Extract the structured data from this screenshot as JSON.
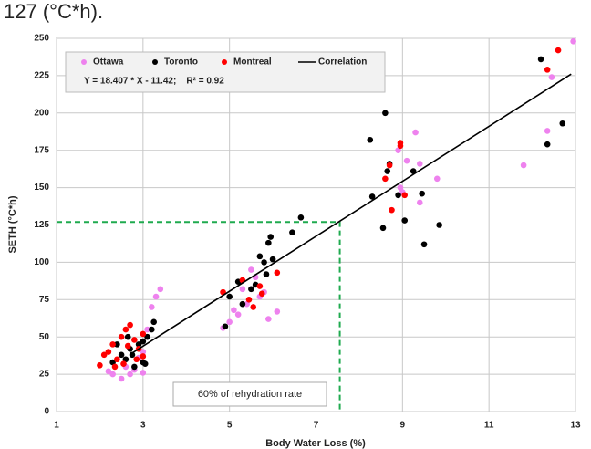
{
  "chart_data": {
    "type": "scatter",
    "text_above": "127 (°C*h).",
    "xlabel": "Body Water Loss (%)",
    "ylabel": "SETH (°C*h)",
    "xlim": [
      1,
      13
    ],
    "xticks": [
      1,
      3,
      5,
      7,
      9,
      11,
      13
    ],
    "ylim": [
      0,
      250
    ],
    "yticks": [
      0,
      25,
      50,
      75,
      100,
      125,
      150,
      175,
      200,
      225,
      250
    ],
    "grid": true,
    "series": [
      {
        "name": "Ottawa",
        "color": "#ee82ee",
        "x": [
          2.2,
          2.3,
          2.5,
          2.6,
          2.8,
          2.9,
          3.0,
          3.2,
          3.3,
          3.4,
          3.1,
          2.7,
          3.0,
          4.85,
          5.0,
          5.1,
          5.2,
          5.3,
          5.4,
          5.5,
          5.6,
          5.8,
          5.9,
          6.1,
          5.7,
          8.9,
          9.0,
          9.1,
          9.3,
          9.4,
          9.4,
          9.8,
          8.95,
          11.8,
          12.35,
          12.45,
          12.95
        ],
        "values": [
          27,
          25,
          22,
          30,
          28,
          36,
          40,
          70,
          77,
          82,
          55,
          25,
          26,
          56,
          60,
          68,
          65,
          82,
          72,
          95,
          90,
          80,
          62,
          67,
          77,
          175,
          147,
          168,
          187,
          166,
          140,
          156,
          150,
          165,
          188,
          224,
          248
        ]
      },
      {
        "name": "Toronto",
        "color": "#000000",
        "x": [
          2.3,
          2.5,
          2.6,
          2.7,
          2.8,
          2.9,
          3.0,
          3.0,
          3.1,
          3.2,
          3.25,
          2.4,
          2.75,
          3.05,
          2.65,
          4.9,
          5.0,
          5.2,
          5.3,
          5.6,
          5.7,
          5.8,
          5.85,
          5.9,
          5.95,
          6.0,
          5.5,
          6.45,
          6.65,
          8.25,
          8.3,
          8.55,
          8.6,
          8.65,
          8.7,
          8.9,
          9.05,
          9.25,
          9.45,
          9.5,
          9.85,
          12.2,
          12.35,
          12.7
        ],
        "values": [
          33,
          38,
          35,
          42,
          30,
          45,
          33,
          47,
          50,
          55,
          60,
          45,
          38,
          32,
          50,
          57,
          77,
          87,
          72,
          85,
          104,
          100,
          92,
          113,
          117,
          102,
          82,
          120,
          130,
          182,
          144,
          123,
          200,
          161,
          166,
          145,
          128,
          161,
          146,
          112,
          125,
          236,
          179,
          193
        ]
      },
      {
        "name": "Montreal",
        "color": "#ff0000",
        "x": [
          2.0,
          2.1,
          2.2,
          2.3,
          2.4,
          2.5,
          2.6,
          2.7,
          2.8,
          2.9,
          3.0,
          3.0,
          2.55,
          2.85,
          2.35,
          2.65,
          4.85,
          5.3,
          5.55,
          5.7,
          5.75,
          6.1,
          5.45,
          8.6,
          8.75,
          8.95,
          8.95,
          9.05,
          8.7,
          12.35,
          12.6
        ],
        "values": [
          31,
          38,
          40,
          45,
          35,
          50,
          55,
          58,
          48,
          42,
          52,
          37,
          32,
          35,
          30,
          44,
          80,
          88,
          70,
          84,
          79,
          93,
          75,
          156,
          135,
          178,
          180,
          145,
          165,
          229,
          242
        ]
      }
    ],
    "correlation": {
      "name": "Correlation",
      "color": "#000000",
      "slope": 18.407,
      "intercept": -11.42,
      "x_range": [
        2.7,
        12.9
      ],
      "equation": "Y = 18.407 * X - 11.42;    R² = 0.92"
    },
    "reference": {
      "x": 7.55,
      "y": 127,
      "color": "#1faa4f",
      "label": "60% of rehydration rate"
    }
  }
}
